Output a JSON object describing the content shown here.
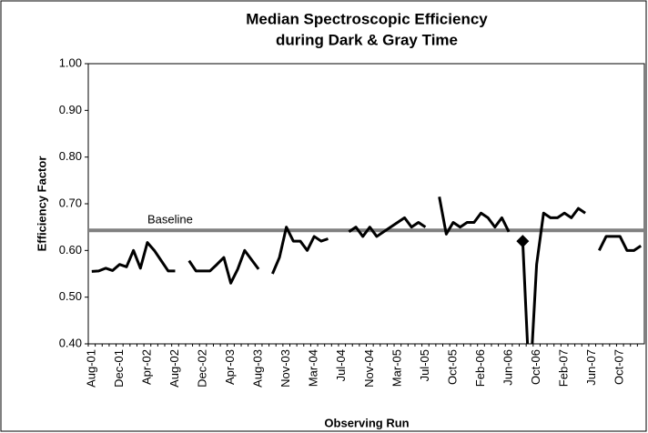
{
  "chart_data": {
    "type": "line",
    "title": [
      "Median Spectroscopic Efficiency",
      "during Dark & Gray Time"
    ],
    "x_label": "Observing Run",
    "y_label": "Efficiency Factor",
    "categories": [
      "Aug-01",
      null,
      null,
      null,
      "Dec-01",
      null,
      null,
      null,
      "Apr-02",
      null,
      null,
      null,
      "Aug-02",
      null,
      null,
      null,
      "Dec-02",
      null,
      null,
      null,
      "Apr-03",
      null,
      null,
      null,
      "Aug-03",
      null,
      null,
      null,
      "Nov-03",
      null,
      null,
      null,
      "Mar-04",
      null,
      null,
      null,
      "Jul-04",
      null,
      null,
      null,
      "Nov-04",
      null,
      null,
      null,
      "Mar-05",
      null,
      null,
      null,
      "Jul-05",
      null,
      null,
      null,
      "Oct-05",
      null,
      null,
      null,
      "Feb-06",
      null,
      null,
      null,
      "Jun-06",
      null,
      null,
      null,
      "Oct-06",
      null,
      null,
      null,
      "Feb-07",
      null,
      null,
      null,
      "Jun-07",
      null,
      null,
      null,
      "Oct-07",
      null,
      null,
      null
    ],
    "values": [
      0.555,
      0.556,
      0.562,
      0.557,
      0.57,
      0.565,
      0.6,
      0.562,
      0.617,
      0.6,
      0.578,
      0.556,
      0.556,
      null,
      0.578,
      0.556,
      0.556,
      0.556,
      0.57,
      0.585,
      0.53,
      0.56,
      0.6,
      0.58,
      0.56,
      null,
      0.55,
      0.585,
      0.65,
      0.62,
      0.62,
      0.6,
      0.63,
      0.62,
      0.625,
      null,
      null,
      0.64,
      0.65,
      0.63,
      0.65,
      0.63,
      0.64,
      0.65,
      0.66,
      0.67,
      0.65,
      0.66,
      0.65,
      null,
      0.715,
      0.635,
      0.66,
      0.65,
      0.66,
      0.66,
      0.68,
      0.67,
      0.65,
      0.67,
      0.64,
      null,
      0.62,
      0.3,
      0.57,
      0.68,
      0.67,
      0.67,
      0.68,
      0.67,
      0.69,
      0.68,
      null,
      0.6,
      0.63,
      0.63,
      0.63,
      0.6,
      0.6,
      0.61
    ],
    "color": "#000000",
    "marker": "diamond",
    "marker_index": 62,
    "baseline": {
      "label": "Baseline",
      "value": 0.643,
      "color": "#808080"
    },
    "ylim": [
      0.4,
      1.0
    ],
    "yticks": [
      {
        "value": 0.4,
        "label": "0.40"
      },
      {
        "value": 0.5,
        "label": "0.50"
      },
      {
        "value": 0.6,
        "label": "0.60"
      },
      {
        "value": 0.7,
        "label": "0.70"
      },
      {
        "value": 0.8,
        "label": "0.80"
      },
      {
        "value": 0.9,
        "label": "0.90"
      },
      {
        "value": 1.0,
        "label": "1.00"
      }
    ],
    "grid": false
  }
}
